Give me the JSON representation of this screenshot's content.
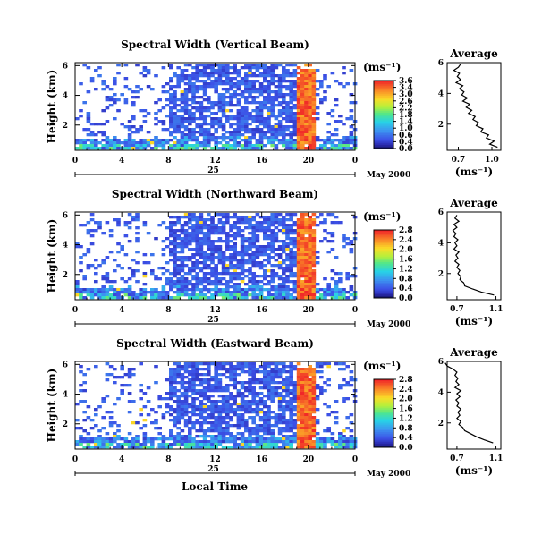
{
  "chart_data": [
    {
      "type": "heatmap",
      "title": "Spectral Width (Vertical Beam)",
      "ylabel": "Height (km)",
      "yticks": [
        "2",
        "4",
        "6"
      ],
      "xticks": [
        "0",
        "4",
        "8",
        "12",
        "16",
        "20",
        "0"
      ],
      "date_day": "25",
      "date_month_year": "May 2000",
      "colorbar": {
        "unit": "(ms⁻¹)",
        "ticks": [
          "3.6",
          "3.4",
          "3.0",
          "2.6",
          "2.2",
          "1.8",
          "1.4",
          "1.0",
          "0.6",
          "0.4",
          "0.0"
        ]
      },
      "average_profile": {
        "title": "Average",
        "xlabel": "(ms⁻¹)",
        "xticks": [
          "0.7",
          "1.0"
        ],
        "yticks": [
          "2",
          "4",
          "6"
        ],
        "xlim": [
          0.6,
          1.08
        ],
        "ylim": [
          0.3,
          6
        ],
        "points": [
          [
            0.72,
            5.9
          ],
          [
            0.7,
            5.7
          ],
          [
            0.66,
            5.5
          ],
          [
            0.71,
            5.3
          ],
          [
            0.69,
            5.1
          ],
          [
            0.72,
            4.9
          ],
          [
            0.68,
            4.7
          ],
          [
            0.74,
            4.5
          ],
          [
            0.71,
            4.3
          ],
          [
            0.75,
            4.1
          ],
          [
            0.73,
            3.9
          ],
          [
            0.78,
            3.7
          ],
          [
            0.74,
            3.5
          ],
          [
            0.8,
            3.3
          ],
          [
            0.77,
            3.1
          ],
          [
            0.82,
            2.9
          ],
          [
            0.79,
            2.7
          ],
          [
            0.85,
            2.5
          ],
          [
            0.83,
            2.3
          ],
          [
            0.88,
            2.1
          ],
          [
            0.86,
            1.9
          ],
          [
            0.92,
            1.7
          ],
          [
            0.9,
            1.5
          ],
          [
            0.97,
            1.3
          ],
          [
            0.95,
            1.1
          ],
          [
            1.02,
            0.9
          ],
          [
            0.98,
            0.7
          ],
          [
            1.05,
            0.5
          ]
        ]
      },
      "time_range_hours": [
        0,
        24
      ],
      "height_range_km": [
        0.3,
        6.2
      ],
      "time_range_label": "25 May 2000"
    },
    {
      "type": "heatmap",
      "title": "Spectral Width (Northward Beam)",
      "ylabel": "Height (km)",
      "yticks": [
        "2",
        "4",
        "6"
      ],
      "xticks": [
        "0",
        "4",
        "8",
        "12",
        "16",
        "20",
        "0"
      ],
      "date_day": "25",
      "date_month_year": "May 2000",
      "colorbar": {
        "unit": "(ms⁻¹)",
        "ticks": [
          "2.8",
          "2.4",
          "2.0",
          "1.6",
          "1.2",
          "0.8",
          "0.4",
          "0.0"
        ]
      },
      "average_profile": {
        "title": "Average",
        "xlabel": "(ms⁻¹)",
        "xticks": [
          "0.7",
          "1.1"
        ],
        "yticks": [
          "2",
          "4",
          "6"
        ],
        "xlim": [
          0.6,
          1.15
        ],
        "ylim": [
          0.3,
          6
        ],
        "points": [
          [
            0.7,
            5.8
          ],
          [
            0.68,
            5.6
          ],
          [
            0.72,
            5.4
          ],
          [
            0.67,
            5.2
          ],
          [
            0.7,
            5.0
          ],
          [
            0.66,
            4.8
          ],
          [
            0.69,
            4.6
          ],
          [
            0.67,
            4.4
          ],
          [
            0.71,
            4.2
          ],
          [
            0.68,
            4.0
          ],
          [
            0.7,
            3.8
          ],
          [
            0.67,
            3.6
          ],
          [
            0.72,
            3.4
          ],
          [
            0.69,
            3.2
          ],
          [
            0.71,
            3.0
          ],
          [
            0.68,
            2.8
          ],
          [
            0.72,
            2.6
          ],
          [
            0.7,
            2.4
          ],
          [
            0.73,
            2.2
          ],
          [
            0.71,
            2.0
          ],
          [
            0.74,
            1.8
          ],
          [
            0.73,
            1.6
          ],
          [
            0.77,
            1.4
          ],
          [
            0.78,
            1.2
          ],
          [
            0.86,
            1.0
          ],
          [
            0.95,
            0.8
          ],
          [
            1.08,
            0.6
          ]
        ]
      },
      "time_range_hours": [
        0,
        24
      ],
      "height_range_km": [
        0.3,
        6.2
      ],
      "time_range_label": "25 May 2000"
    },
    {
      "type": "heatmap",
      "title": "Spectral Width (Eastward Beam)",
      "ylabel": "Height (km)",
      "yticks": [
        "2",
        "4",
        "6"
      ],
      "xticks": [
        "0",
        "4",
        "8",
        "12",
        "16",
        "20",
        "0"
      ],
      "date_day": "25",
      "date_month_year": "May 2000",
      "xlabel": "Local Time",
      "colorbar": {
        "unit": "(ms⁻¹)",
        "ticks": [
          "2.8",
          "2.4",
          "2.0",
          "1.6",
          "1.2",
          "0.8",
          "0.4",
          "0.0"
        ]
      },
      "average_profile": {
        "title": "Average",
        "xlabel": "(ms⁻¹)",
        "xticks": [
          "0.7",
          "1.1"
        ],
        "yticks": [
          "2",
          "4",
          "6"
        ],
        "xlim": [
          0.6,
          1.15
        ],
        "ylim": [
          0.3,
          6
        ],
        "points": [
          [
            0.58,
            5.9
          ],
          [
            0.6,
            5.7
          ],
          [
            0.66,
            5.5
          ],
          [
            0.7,
            5.3
          ],
          [
            0.68,
            5.1
          ],
          [
            0.71,
            4.9
          ],
          [
            0.69,
            4.7
          ],
          [
            0.72,
            4.5
          ],
          [
            0.68,
            4.3
          ],
          [
            0.74,
            4.1
          ],
          [
            0.7,
            3.9
          ],
          [
            0.73,
            3.7
          ],
          [
            0.69,
            3.5
          ],
          [
            0.72,
            3.3
          ],
          [
            0.7,
            3.1
          ],
          [
            0.74,
            2.9
          ],
          [
            0.71,
            2.7
          ],
          [
            0.73,
            2.5
          ],
          [
            0.7,
            2.3
          ],
          [
            0.74,
            2.1
          ],
          [
            0.72,
            1.9
          ],
          [
            0.76,
            1.7
          ],
          [
            0.78,
            1.5
          ],
          [
            0.84,
            1.3
          ],
          [
            0.9,
            1.1
          ],
          [
            0.98,
            0.9
          ],
          [
            1.07,
            0.7
          ]
        ]
      },
      "time_range_hours": [
        0,
        24
      ],
      "height_range_km": [
        0.3,
        6.2
      ],
      "time_range_label": "25 May 2000"
    }
  ]
}
